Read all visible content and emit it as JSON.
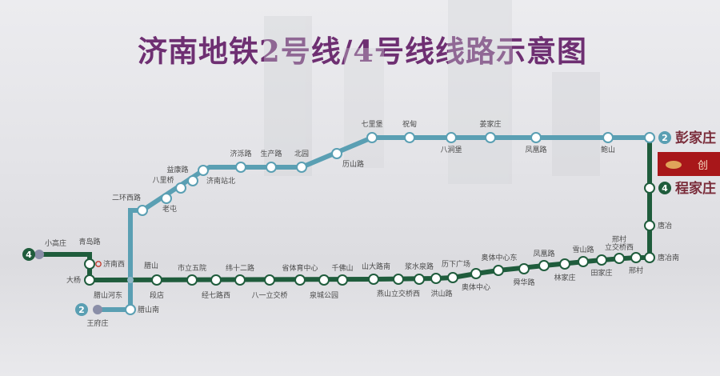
{
  "title": "济南地铁2号线/4号线线路示意图",
  "colors": {
    "line2": "#5a9fb3",
    "line4": "#1f5c3c",
    "title": "#6e2f72",
    "logo_bg": "#a8171a"
  },
  "line2": {
    "number": "2",
    "west_terminal": "王府庄",
    "east_terminal": "彭家庄",
    "stations": [
      "王府庄",
      "腊山南",
      "腊山",
      "二环西路",
      "老屯",
      "八里桥",
      "益康路",
      "济南站北",
      "济泺路",
      "生产路",
      "北园",
      "历山路",
      "七里堡",
      "祝甸",
      "八涧堡",
      "姜家庄",
      "凤凰路",
      "鲍山",
      "彭家庄"
    ]
  },
  "line4": {
    "number": "4",
    "west_terminal": "小高庄",
    "east_terminal": "程家庄",
    "stations": [
      "小高庄",
      "青岛路",
      "大杨",
      "腊山河东",
      "段店",
      "市立五院",
      "经七路西",
      "纬十二路",
      "八一立交桥",
      "省体育中心",
      "泉城公园",
      "千佛山",
      "山大路南",
      "燕山立交桥西",
      "浆水泉路",
      "洪山路",
      "历下广场",
      "奥体中心",
      "奥体中心东",
      "舜华路",
      "凤凰路",
      "林家庄",
      "雪山路",
      "田家庄",
      "邢村立交桥西",
      "邢村",
      "唐冶南",
      "唐冶",
      "程家庄"
    ]
  },
  "railway_station": {
    "label": "济南西",
    "icon": "railway-station-icon"
  },
  "logo": {
    "text": "创"
  }
}
